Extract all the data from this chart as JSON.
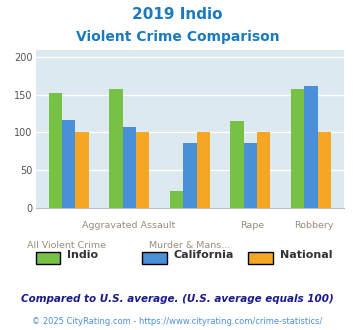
{
  "title_line1": "2019 Indio",
  "title_line2": "Violent Crime Comparison",
  "title_color": "#1a7abf",
  "categories": [
    "All Violent Crime",
    "Aggravated\nAssault",
    "Murder & Mans...",
    "Rape",
    "Robbery"
  ],
  "cat_top": [
    "",
    "Aggravated Assault",
    "",
    "Rape",
    "Robbery"
  ],
  "cat_bot": [
    "All Violent Crime",
    "",
    "Murder & Mans...",
    "",
    ""
  ],
  "series": {
    "Indio": [
      152,
      158,
      22,
      115,
      157
    ],
    "California": [
      117,
      107,
      86,
      86,
      162
    ],
    "National": [
      100,
      100,
      100,
      100,
      100
    ]
  },
  "colors": {
    "Indio": "#77c244",
    "California": "#4a90d9",
    "National": "#f5a623"
  },
  "ylim": [
    0,
    210
  ],
  "yticks": [
    0,
    50,
    100,
    150,
    200
  ],
  "bg_color": "#dce9f0",
  "grid_color": "#ffffff",
  "footnote1": "Compared to U.S. average. (U.S. average equals 100)",
  "footnote2": "© 2025 CityRating.com - https://www.cityrating.com/crime-statistics/",
  "footnote1_color": "#1a1a8c",
  "footnote2_color": "#4a90d9",
  "label_color": "#9b8c7a",
  "bar_width": 0.22
}
